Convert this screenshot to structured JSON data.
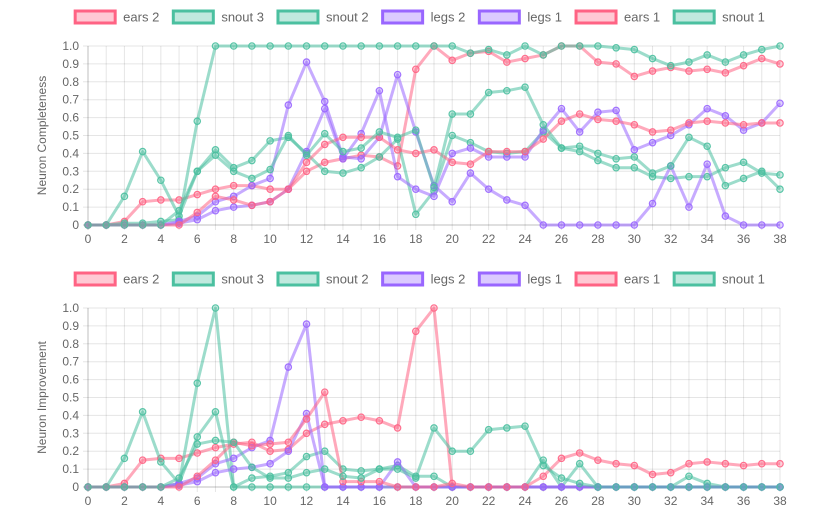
{
  "chart_data": [
    {
      "type": "line",
      "ylabel": "Neuron Completeness",
      "ylim": [
        0,
        1
      ],
      "yticks": [
        "0",
        "0.1",
        "0.2",
        "0.3",
        "0.4",
        "0.5",
        "0.6",
        "0.7",
        "0.8",
        "0.9",
        "1.0"
      ],
      "xticks": [
        "0",
        "2",
        "4",
        "6",
        "8",
        "10",
        "12",
        "14",
        "16",
        "18",
        "20",
        "22",
        "24",
        "26",
        "28",
        "30",
        "32",
        "34",
        "36",
        "38"
      ],
      "x": [
        0,
        1,
        2,
        3,
        4,
        5,
        6,
        7,
        8,
        9,
        10,
        11,
        12,
        13,
        14,
        15,
        16,
        17,
        18,
        19,
        20,
        21,
        22,
        23,
        24,
        25,
        26,
        27,
        28,
        29,
        30,
        31,
        32,
        33,
        34,
        35,
        36,
        37,
        38
      ],
      "grid": true,
      "legend_position": "top",
      "series": [
        {
          "name": "ears 2",
          "color": "#ff6384",
          "values": [
            0,
            0,
            0.02,
            0.13,
            0.14,
            0.14,
            0.17,
            0.2,
            0.22,
            0.22,
            0.2,
            0.2,
            0.3,
            0.35,
            0.37,
            0.39,
            0.38,
            0.33,
            0.87,
            1.0,
            0.92,
            0.96,
            0.97,
            0.91,
            0.93,
            0.95,
            1.0,
            1.0,
            0.91,
            0.9,
            0.83,
            0.86,
            0.88,
            0.86,
            0.87,
            0.85,
            0.89,
            0.93,
            0.9
          ]
        },
        {
          "name": "snout 3",
          "color": "#4bc0a0",
          "values": [
            0,
            0,
            0.16,
            0.41,
            0.25,
            0.05,
            0.3,
            0.42,
            0.32,
            0.36,
            0.47,
            0.49,
            0.4,
            0.3,
            0.29,
            0.32,
            0.38,
            0.48,
            0.06,
            0.19,
            0.5,
            0.46,
            0.41,
            0.4,
            0.41,
            0.52,
            0.43,
            0.41,
            0.36,
            0.32,
            0.32,
            0.27,
            0.26,
            0.27,
            0.27,
            0.32,
            0.35,
            0.29,
            0.28
          ]
        },
        {
          "name": "snout 2",
          "color": "#4bc0a0",
          "values": [
            0,
            0,
            0.01,
            0.01,
            0.02,
            0.03,
            0.58,
            1.0,
            1.0,
            1.0,
            1.0,
            1.0,
            1.0,
            1.0,
            1.0,
            1.0,
            1.0,
            1.0,
            1.0,
            1.0,
            1.0,
            0.96,
            0.98,
            0.95,
            1.0,
            0.95,
            1.0,
            1.0,
            1.0,
            0.99,
            0.98,
            0.93,
            0.89,
            0.91,
            0.95,
            0.91,
            0.95,
            0.98,
            1.0
          ]
        },
        {
          "name": "legs 2",
          "color": "#9966ff",
          "values": [
            0,
            0,
            0,
            0,
            0,
            0.01,
            0.03,
            0.08,
            0.1,
            0.11,
            0.13,
            0.2,
            0.41,
            0.65,
            0.37,
            0.51,
            0.75,
            0.27,
            0.2,
            0.16,
            0.4,
            0.43,
            0.38,
            0.38,
            0.38,
            0.53,
            0.65,
            0.52,
            0.63,
            0.64,
            0.42,
            0.46,
            0.5,
            0.56,
            0.65,
            0.61,
            0.53,
            0.57,
            0.68
          ]
        },
        {
          "name": "legs 1",
          "color": "#9966ff",
          "values": [
            0,
            0,
            0,
            0,
            0,
            0.02,
            0.05,
            0.13,
            0.16,
            0.22,
            0.26,
            0.67,
            0.91,
            0.69,
            0.38,
            0.37,
            0.49,
            0.84,
            0.52,
            0.22,
            0.13,
            0.29,
            0.2,
            0.14,
            0.11,
            0.0,
            0.0,
            0.0,
            0.0,
            0.0,
            0.0,
            0.12,
            0.33,
            0.1,
            0.34,
            0.05,
            0.0,
            0.0,
            0.0
          ]
        },
        {
          "name": "ears 1",
          "color": "#ff6384",
          "values": [
            0,
            0,
            0,
            0,
            0,
            0,
            0.07,
            0.16,
            0.14,
            0.11,
            0.13,
            0.2,
            0.35,
            0.45,
            0.49,
            0.49,
            0.49,
            0.42,
            0.4,
            0.42,
            0.35,
            0.34,
            0.41,
            0.41,
            0.41,
            0.48,
            0.58,
            0.62,
            0.59,
            0.58,
            0.56,
            0.52,
            0.53,
            0.57,
            0.58,
            0.57,
            0.56,
            0.57,
            0.57
          ]
        },
        {
          "name": "snout 1",
          "color": "#4bc0a0",
          "values": [
            0,
            0,
            0,
            0,
            0,
            0.08,
            0.3,
            0.39,
            0.3,
            0.26,
            0.31,
            0.5,
            0.39,
            0.51,
            0.41,
            0.43,
            0.52,
            0.49,
            0.53,
            0.21,
            0.62,
            0.62,
            0.74,
            0.75,
            0.77,
            0.56,
            0.43,
            0.44,
            0.4,
            0.37,
            0.38,
            0.29,
            0.33,
            0.49,
            0.44,
            0.22,
            0.26,
            0.3,
            0.2
          ]
        }
      ]
    },
    {
      "type": "line",
      "ylabel": "Neuron Improvement",
      "ylim": [
        0,
        1
      ],
      "yticks": [
        "0",
        "0.1",
        "0.2",
        "0.3",
        "0.4",
        "0.5",
        "0.6",
        "0.7",
        "0.8",
        "0.9",
        "1.0"
      ],
      "xticks": [
        "0",
        "2",
        "4",
        "6",
        "8",
        "10",
        "12",
        "14",
        "16",
        "18",
        "20",
        "22",
        "24",
        "26",
        "28",
        "30",
        "32",
        "34",
        "36",
        "38"
      ],
      "x": [
        0,
        1,
        2,
        3,
        4,
        5,
        6,
        7,
        8,
        9,
        10,
        11,
        12,
        13,
        14,
        15,
        16,
        17,
        18,
        19,
        20,
        21,
        22,
        23,
        24,
        25,
        26,
        27,
        28,
        29,
        30,
        31,
        32,
        33,
        34,
        35,
        36,
        37,
        38
      ],
      "grid": true,
      "legend_position": "top",
      "series": [
        {
          "name": "ears 2",
          "color": "#ff6384",
          "values": [
            0,
            0,
            0.02,
            0.15,
            0.16,
            0.16,
            0.19,
            0.22,
            0.24,
            0.25,
            0.2,
            0.21,
            0.3,
            0.35,
            0.37,
            0.39,
            0.37,
            0.33,
            0.87,
            1.0,
            0,
            0,
            0,
            0,
            0,
            0,
            0,
            0,
            0,
            0,
            0,
            0,
            0,
            0,
            0,
            0,
            0,
            0,
            0
          ]
        },
        {
          "name": "snout 3",
          "color": "#4bc0a0",
          "values": [
            0,
            0,
            0.16,
            0.42,
            0.14,
            0.02,
            0.28,
            0.42,
            0.0,
            0.05,
            0.06,
            0.08,
            0.17,
            0.2,
            0.1,
            0.09,
            0.1,
            0.12,
            0.06,
            0.06,
            0.0,
            0.0,
            0.0,
            0.0,
            0.0,
            0.15,
            0.0,
            0.13,
            0.0,
            0.0,
            0.0,
            0.0,
            0.0,
            0.06,
            0.02,
            0.0,
            0.0,
            0.0,
            0.0
          ]
        },
        {
          "name": "snout 2",
          "color": "#4bc0a0",
          "values": [
            0,
            0,
            0,
            0,
            0,
            0.02,
            0.58,
            1.0,
            0,
            0,
            0,
            0,
            0,
            0,
            0,
            0,
            0,
            0,
            0,
            0,
            0,
            0,
            0,
            0,
            0,
            0,
            0,
            0,
            0,
            0,
            0,
            0,
            0,
            0,
            0,
            0,
            0,
            0,
            0
          ]
        },
        {
          "name": "legs 2",
          "color": "#9966ff",
          "values": [
            0,
            0,
            0,
            0,
            0,
            0.01,
            0.03,
            0.08,
            0.1,
            0.11,
            0.13,
            0.2,
            0.41,
            0.0,
            0.0,
            0.0,
            0.0,
            0.14,
            0.0,
            0.0,
            0.0,
            0.0,
            0.0,
            0.0,
            0.0,
            0.0,
            0.0,
            0.0,
            0.0,
            0.0,
            0.0,
            0.0,
            0.0,
            0.0,
            0.0,
            0.0,
            0.0,
            0.0,
            0.0
          ]
        },
        {
          "name": "legs 1",
          "color": "#9966ff",
          "values": [
            0,
            0,
            0,
            0,
            0,
            0.02,
            0.05,
            0.13,
            0.16,
            0.22,
            0.26,
            0.67,
            0.91,
            0.0,
            0,
            0,
            0,
            0,
            0,
            0,
            0,
            0,
            0,
            0,
            0,
            0,
            0,
            0,
            0,
            0,
            0,
            0,
            0,
            0,
            0,
            0,
            0,
            0,
            0
          ]
        },
        {
          "name": "ears 1",
          "color": "#ff6384",
          "values": [
            0,
            0,
            0,
            0,
            0,
            0,
            0.06,
            0.15,
            0.25,
            0.23,
            0.24,
            0.25,
            0.38,
            0.53,
            0.03,
            0.03,
            0.03,
            0.0,
            0.0,
            0.0,
            0.02,
            0.0,
            0.0,
            0.0,
            0.0,
            0.06,
            0.16,
            0.19,
            0.15,
            0.13,
            0.12,
            0.07,
            0.08,
            0.13,
            0.14,
            0.13,
            0.12,
            0.13,
            0.13
          ]
        },
        {
          "name": "snout 1",
          "color": "#4bc0a0",
          "values": [
            0,
            0,
            0,
            0,
            0,
            0.05,
            0.24,
            0.26,
            0.25,
            0.11,
            0.05,
            0.05,
            0.08,
            0.1,
            0.06,
            0.05,
            0.1,
            0.1,
            0.05,
            0.33,
            0.2,
            0.2,
            0.32,
            0.33,
            0.34,
            0.12,
            0.05,
            0.02,
            0.0,
            0.0,
            0.0,
            0.0,
            0.0,
            0.0,
            0.0,
            0.0,
            0.0,
            0.0,
            0.0
          ]
        }
      ]
    }
  ]
}
